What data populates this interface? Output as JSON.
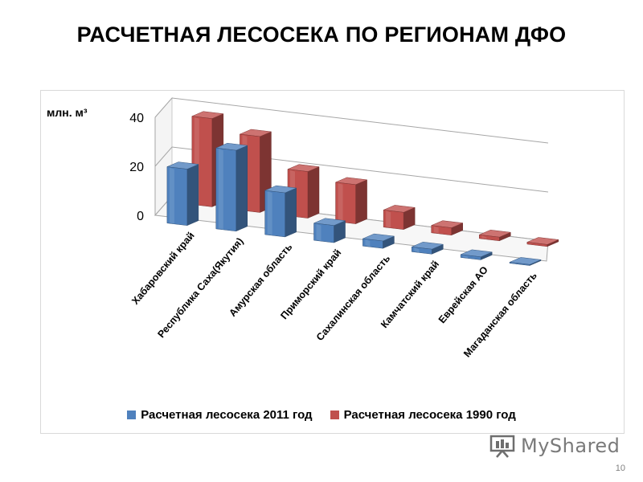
{
  "slide": {
    "title": "РАСЧЕТНАЯ ЛЕСОСЕКА ПО РЕГИОНАМ ДФО",
    "page_number": "10",
    "watermark": "MyShared"
  },
  "chart_data": {
    "type": "bar",
    "ylabel": "млн. м³",
    "ylim": [
      0,
      40
    ],
    "yticks": [
      0,
      20,
      40
    ],
    "grid": true,
    "legend_position": "bottom",
    "categories": [
      "Хабаровский край",
      "Республика Саха(Якутия)",
      "Амурская область",
      "Приморский край",
      "Сахалинская область",
      "Камчатский край",
      "Еврейская АО",
      "Магаданская область"
    ],
    "series": [
      {
        "name": "Расчетная лесосека 2011 год",
        "color": "#4f81bd",
        "values": [
          23,
          33,
          18,
          7,
          3,
          2,
          1.2,
          0.4
        ]
      },
      {
        "name": "Расчетная лесосека 1990 год",
        "color": "#c0504d",
        "values": [
          36,
          31,
          19,
          16,
          7,
          3,
          1.5,
          0.8
        ]
      }
    ]
  }
}
